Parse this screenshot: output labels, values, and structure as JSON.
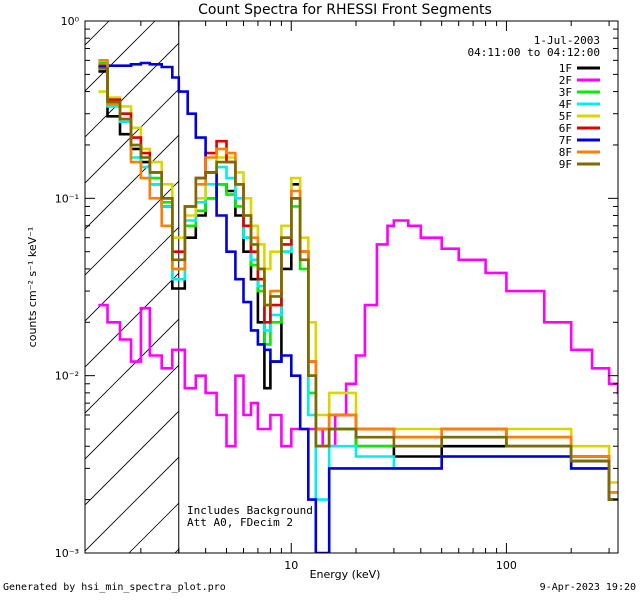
{
  "chart_data": {
    "type": "line",
    "title": "Count Spectra for RHESSI Front Segments",
    "xlabel": "Energy (keV)",
    "ylabel": "counts cm⁻² s⁻¹ keV⁻¹",
    "xscale": "log",
    "yscale": "log",
    "xlim": [
      1.1,
      330
    ],
    "ylim": [
      0.001,
      1
    ],
    "x_ticks": [
      {
        "value": 10,
        "label": "10"
      },
      {
        "value": 100,
        "label": "100"
      }
    ],
    "y_ticks": [
      {
        "value": 1,
        "label": "10⁰"
      },
      {
        "value": 0.1,
        "label": "10⁻¹"
      },
      {
        "value": 0.01,
        "label": "10⁻²"
      },
      {
        "value": 0.001,
        "label": "10⁻³"
      }
    ],
    "legend_date": "1-Jul-2003",
    "legend_time": "04:11:00 to 04:12:00",
    "legend_position": "top-right",
    "series": [
      {
        "name": "1F",
        "color": "#000000",
        "energy": [
          1.27,
          1.4,
          1.6,
          1.8,
          2.0,
          2.2,
          2.5,
          2.8,
          3.2,
          3.6,
          4.0,
          4.5,
          5.0,
          5.5,
          6.0,
          6.5,
          7.0,
          7.5,
          8.0,
          9.0,
          10.0,
          11.0,
          12.0,
          13.0,
          15.0,
          20.0,
          30.0,
          50.0,
          100.0,
          200.0,
          300.0
        ],
        "values": [
          0.52,
          0.29,
          0.23,
          0.19,
          0.16,
          0.12,
          0.09,
          0.031,
          0.06,
          0.08,
          0.1,
          0.12,
          0.11,
          0.08,
          0.05,
          0.035,
          0.02,
          0.0085,
          0.012,
          0.04,
          0.12,
          0.05,
          0.01,
          0.004,
          0.005,
          0.004,
          0.0035,
          0.004,
          0.004,
          0.0033,
          0.002
        ]
      },
      {
        "name": "2F",
        "color": "#ff00ff",
        "energy": [
          1.27,
          1.4,
          1.6,
          1.8,
          2.0,
          2.2,
          2.5,
          2.8,
          3.2,
          3.6,
          4.0,
          4.5,
          5.0,
          5.5,
          6.0,
          6.5,
          7.0,
          8.0,
          9.0,
          10.0,
          12.0,
          14.0,
          16.0,
          18.0,
          20.0,
          22.0,
          25.0,
          28.0,
          30.0,
          35.0,
          40.0,
          50.0,
          60.0,
          80.0,
          100.0,
          150.0,
          200.0,
          250.0,
          300.0,
          330.0
        ],
        "values": [
          0.025,
          0.02,
          0.016,
          0.012,
          0.024,
          0.013,
          0.011,
          0.014,
          0.0085,
          0.01,
          0.008,
          0.006,
          0.004,
          0.01,
          0.006,
          0.007,
          0.005,
          0.006,
          0.004,
          0.005,
          0.005,
          0.004,
          0.006,
          0.009,
          0.013,
          0.025,
          0.055,
          0.07,
          0.075,
          0.07,
          0.06,
          0.052,
          0.045,
          0.038,
          0.03,
          0.02,
          0.014,
          0.011,
          0.009,
          0.008
        ]
      },
      {
        "name": "3F",
        "color": "#00ee00",
        "energy": [
          1.27,
          1.4,
          1.6,
          1.8,
          2.0,
          2.2,
          2.5,
          2.8,
          3.2,
          3.6,
          4.0,
          4.5,
          5.0,
          5.5,
          6.0,
          6.5,
          7.0,
          7.5,
          8.0,
          9.0,
          10.0,
          11.0,
          12.0,
          13.0,
          15.0,
          20.0,
          30.0,
          50.0,
          100.0,
          200.0,
          300.0
        ],
        "values": [
          0.58,
          0.34,
          0.3,
          0.2,
          0.17,
          0.13,
          0.095,
          0.04,
          0.07,
          0.085,
          0.1,
          0.12,
          0.105,
          0.09,
          0.06,
          0.042,
          0.03,
          0.015,
          0.02,
          0.05,
          0.09,
          0.04,
          0.008,
          0.004,
          0.005,
          0.004,
          0.004,
          0.0045,
          0.004,
          0.0035,
          0.0022
        ]
      },
      {
        "name": "4F",
        "color": "#00eeee",
        "energy": [
          1.27,
          1.4,
          1.6,
          1.8,
          2.0,
          2.2,
          2.5,
          2.8,
          3.2,
          3.6,
          4.0,
          4.5,
          5.0,
          5.5,
          6.0,
          6.5,
          7.0,
          7.5,
          8.0,
          9.0,
          10.0,
          11.0,
          12.0,
          13.0,
          15.0,
          20.0,
          30.0,
          50.0,
          100.0,
          200.0,
          300.0
        ],
        "values": [
          0.55,
          0.33,
          0.27,
          0.17,
          0.15,
          0.12,
          0.09,
          0.035,
          0.075,
          0.095,
          0.12,
          0.15,
          0.13,
          0.1,
          0.06,
          0.045,
          0.032,
          0.018,
          0.022,
          0.05,
          0.1,
          0.045,
          0.006,
          0.002,
          0.004,
          0.0035,
          0.003,
          0.0035,
          0.0035,
          0.003,
          0.002
        ]
      },
      {
        "name": "5F",
        "color": "#d8d800",
        "energy": [
          1.27,
          1.4,
          1.6,
          1.8,
          2.0,
          2.2,
          2.5,
          2.8,
          3.2,
          3.6,
          4.0,
          4.5,
          5.0,
          5.5,
          6.0,
          6.5,
          7.0,
          7.5,
          8.0,
          9.0,
          10.0,
          11.0,
          12.0,
          13.0,
          15.0,
          20.0,
          30.0,
          50.0,
          100.0,
          200.0,
          300.0
        ],
        "values": [
          0.4,
          0.37,
          0.33,
          0.25,
          0.19,
          0.16,
          0.12,
          0.06,
          0.08,
          0.1,
          0.14,
          0.17,
          0.17,
          0.14,
          0.1,
          0.07,
          0.055,
          0.04,
          0.05,
          0.07,
          0.13,
          0.06,
          0.02,
          0.006,
          0.008,
          0.005,
          0.005,
          0.005,
          0.005,
          0.004,
          0.0025
        ]
      },
      {
        "name": "6F",
        "color": "#dd0000",
        "energy": [
          1.27,
          1.4,
          1.6,
          1.8,
          2.0,
          2.2,
          2.5,
          2.8,
          3.2,
          3.6,
          4.0,
          4.5,
          5.0,
          5.5,
          6.0,
          6.5,
          7.0,
          7.5,
          8.0,
          9.0,
          10.0,
          11.0,
          12.0,
          13.0,
          15.0,
          20.0,
          30.0,
          50.0,
          100.0,
          200.0,
          300.0
        ],
        "values": [
          0.56,
          0.36,
          0.3,
          0.22,
          0.18,
          0.14,
          0.1,
          0.05,
          0.09,
          0.13,
          0.18,
          0.21,
          0.16,
          0.12,
          0.07,
          0.05,
          0.035,
          0.02,
          0.025,
          0.055,
          0.1,
          0.05,
          0.012,
          0.005,
          0.006,
          0.005,
          0.0045,
          0.005,
          0.0045,
          0.0035,
          0.0022
        ]
      },
      {
        "name": "7F",
        "color": "#0000dd",
        "energy": [
          1.27,
          1.4,
          1.6,
          1.8,
          2.0,
          2.2,
          2.5,
          2.8,
          3.0,
          3.3,
          3.6,
          4.0,
          4.5,
          5.0,
          5.5,
          6.0,
          6.5,
          7.0,
          7.5,
          8.0,
          9.0,
          10.0,
          11.0,
          12.0,
          13.0,
          15.0,
          20.0,
          30.0,
          50.0,
          100.0,
          200.0,
          300.0
        ],
        "values": [
          0.55,
          0.56,
          0.56,
          0.57,
          0.58,
          0.57,
          0.55,
          0.48,
          0.4,
          0.3,
          0.22,
          0.14,
          0.08,
          0.05,
          0.035,
          0.026,
          0.018,
          0.015,
          0.014,
          0.012,
          0.013,
          0.01,
          0.005,
          0.002,
          0.001,
          0.003,
          0.003,
          0.003,
          0.0035,
          0.0035,
          0.003,
          0.002
        ]
      },
      {
        "name": "8F",
        "color": "#ff7f00",
        "energy": [
          1.27,
          1.4,
          1.6,
          1.8,
          2.0,
          2.2,
          2.5,
          2.8,
          3.2,
          3.6,
          4.0,
          4.5,
          5.0,
          5.5,
          6.0,
          6.5,
          7.0,
          7.5,
          8.0,
          9.0,
          10.0,
          11.0,
          12.0,
          13.0,
          15.0,
          20.0,
          30.0,
          50.0,
          100.0,
          200.0,
          300.0
        ],
        "values": [
          0.6,
          0.34,
          0.28,
          0.16,
          0.13,
          0.1,
          0.07,
          0.04,
          0.09,
          0.12,
          0.17,
          0.19,
          0.18,
          0.12,
          0.08,
          0.06,
          0.04,
          0.025,
          0.03,
          0.06,
          0.11,
          0.05,
          0.012,
          0.005,
          0.006,
          0.005,
          0.0045,
          0.005,
          0.0045,
          0.0035,
          0.0022
        ]
      },
      {
        "name": "9F",
        "color": "#7f6a00",
        "energy": [
          1.27,
          1.4,
          1.6,
          1.8,
          2.0,
          2.2,
          2.5,
          2.8,
          3.2,
          3.6,
          4.0,
          4.5,
          5.0,
          5.5,
          6.0,
          6.5,
          7.0,
          7.5,
          8.0,
          9.0,
          10.0,
          11.0,
          12.0,
          13.0,
          15.0,
          20.0,
          30.0,
          50.0,
          100.0,
          200.0,
          300.0
        ],
        "values": [
          0.54,
          0.35,
          0.28,
          0.2,
          0.17,
          0.14,
          0.1,
          0.045,
          0.09,
          0.13,
          0.14,
          0.16,
          0.16,
          0.12,
          0.08,
          0.055,
          0.04,
          0.025,
          0.028,
          0.06,
          0.1,
          0.045,
          0.01,
          0.004,
          0.005,
          0.0045,
          0.004,
          0.0045,
          0.004,
          0.0033,
          0.002
        ]
      }
    ],
    "shaded_region": {
      "x_start": 1.1,
      "x_end": 3.0,
      "pattern": "diagonal-hatch"
    },
    "vertical_line_at": 3.0,
    "annotations": [
      "Includes Background",
      "Att A0, FDecim 2"
    ]
  },
  "footer": {
    "generated_by": "Generated by hsi_min_spectra_plot.pro",
    "timestamp": "9-Apr-2023 19:20"
  }
}
